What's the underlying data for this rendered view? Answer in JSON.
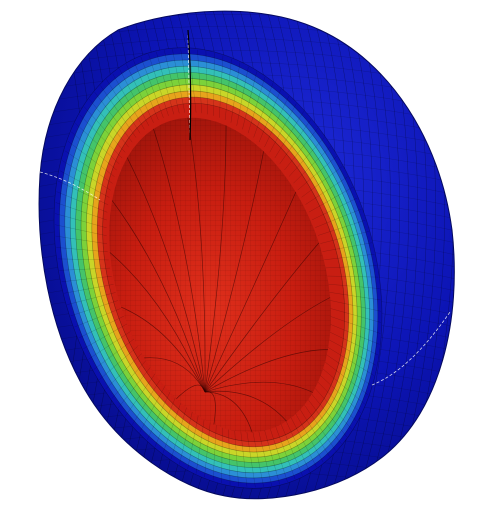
{
  "figure": {
    "subject": "hemisphere-shell-cutaway",
    "colormap": [
      "#0a10b0",
      "#1b4fd0",
      "#2b8fd6",
      "#33c0b8",
      "#44c46a",
      "#7cd23a",
      "#c9d628",
      "#e7a41c",
      "#d5331a",
      "#c81e12"
    ],
    "outer_color": "#0c12a8",
    "inner_color": "#d0200f",
    "mesh_color": "#000000",
    "background": "#ffffff"
  }
}
